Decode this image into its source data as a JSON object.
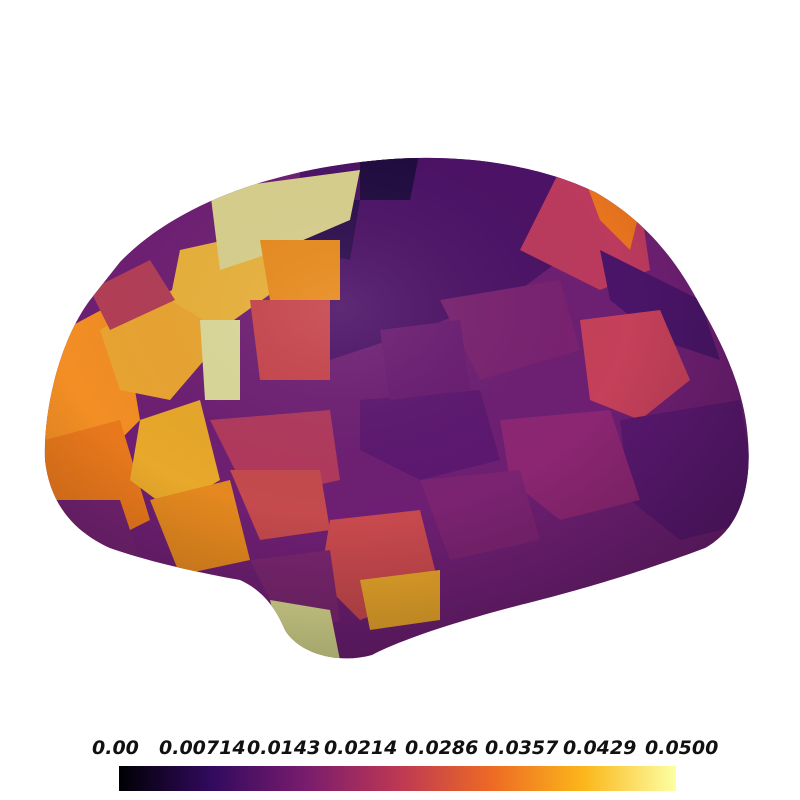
{
  "colorbar": {
    "min": 0.0,
    "max": 0.05,
    "colormap": "inferno",
    "tick_labels": [
      "0.00",
      "0.00714",
      "0.0143",
      "0.0214",
      "0.0286",
      "0.0357",
      "0.0429",
      "0.0500"
    ]
  },
  "colors": {
    "background": "#ffffff",
    "cmap_stops": [
      "#000004",
      "#320a5e",
      "#781c6d",
      "#bc3754",
      "#ed6925",
      "#fbb61a",
      "#fcffa4"
    ]
  }
}
